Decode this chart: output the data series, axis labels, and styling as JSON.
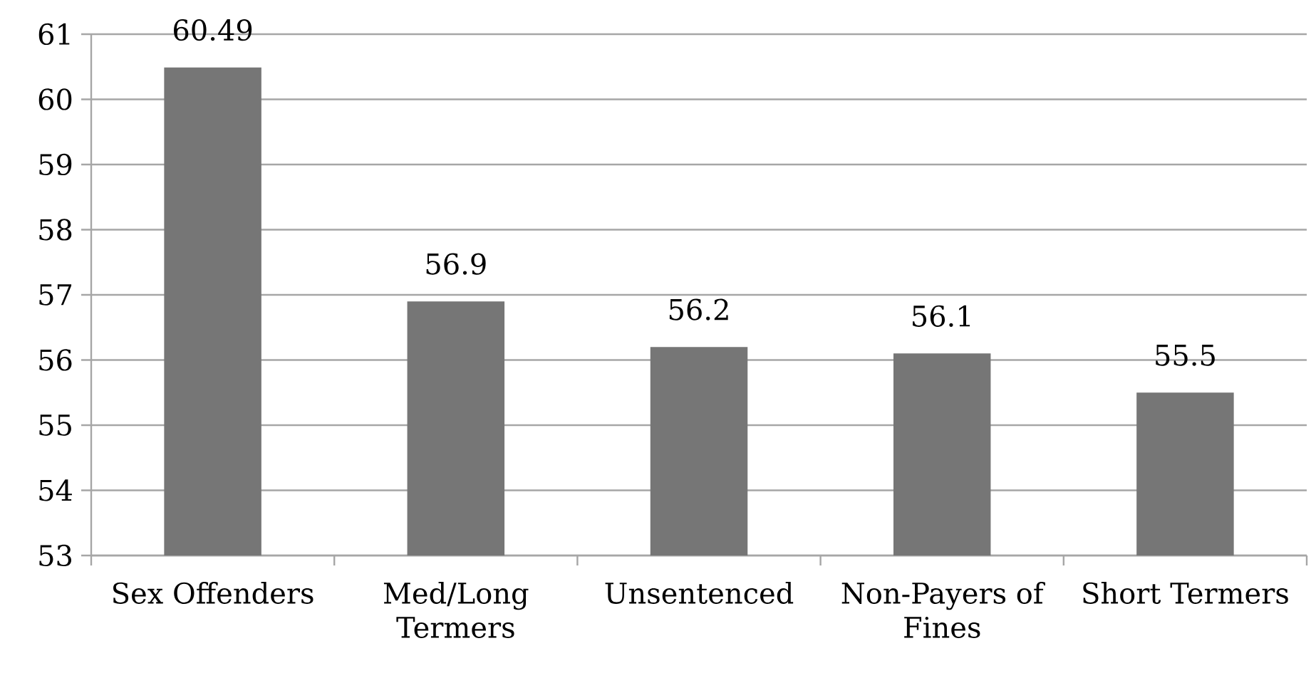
{
  "chart_data": {
    "type": "bar",
    "categories": [
      "Sex Offenders",
      "Med/Long Termers",
      "Unsentenced",
      "Non-Payers of Fines",
      "Short Termers"
    ],
    "values": [
      60.49,
      56.9,
      56.2,
      56.1,
      55.5
    ],
    "color": "#767676",
    "ylim": [
      53,
      61
    ],
    "yticks": [
      53,
      54,
      55,
      56,
      57,
      58,
      59,
      60,
      61
    ],
    "grid": "y",
    "data_labels": true
  }
}
